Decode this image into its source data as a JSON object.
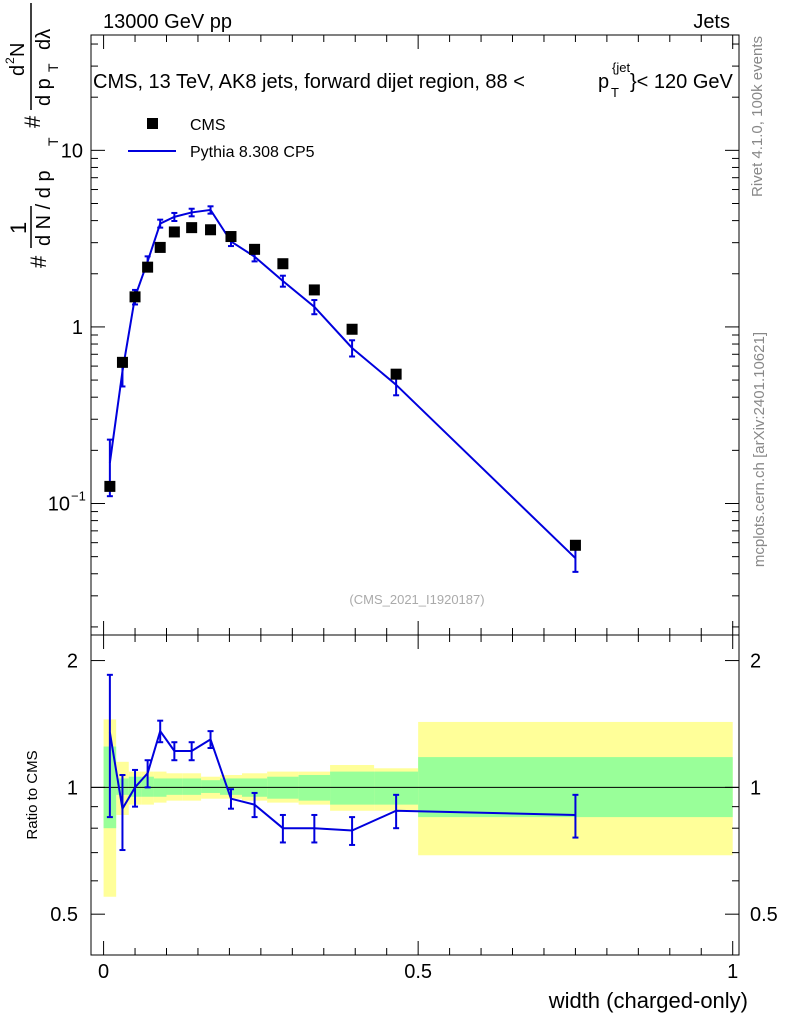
{
  "header": {
    "left": "13000 GeV pp",
    "right": "Jets"
  },
  "side_texts": {
    "rivet": "Rivet 4.1.0,  100k events",
    "mcplots": "mcplots.cern.ch [arXiv:2401.10621]"
  },
  "watermark": "(CMS_2021_I1920187)",
  "chart_data": {
    "type": "scatter",
    "title": "CMS, 13 TeV, AK8 jets, forward dijet region, 88 <",
    "title_pt": "p",
    "title_sub": "T",
    "title_sup": "{jet",
    "title_close": "}< 120 GeV",
    "xlabel": "width (charged-only)",
    "ylabel": {
      "hash1": "#",
      "one": "1",
      "dN": "d N / d p",
      "T": "T",
      "hash2": "#",
      "d2N": "d",
      "two": "2",
      "N": "N",
      "dpt": "d p",
      "dlambda": "dλ"
    },
    "xlim": [
      0,
      1
    ],
    "main_ylim": [
      0.018,
      45
    ],
    "main_yscale": "log",
    "main_yticks": [
      {
        "value": 10,
        "label": "10"
      },
      {
        "value": 1,
        "label": "1"
      },
      {
        "value": 0.1,
        "label": "10",
        "sup": "−1"
      }
    ],
    "ratio_ylabel": "Ratio to CMS",
    "ratio_ylim": [
      0.4,
      2.3
    ],
    "ratio_yscale": "log",
    "ratio_yticks": [
      {
        "value": 2,
        "label": "2"
      },
      {
        "value": 1,
        "label": "1"
      },
      {
        "value": 0.5,
        "label": "0.5"
      }
    ],
    "xticks": [
      {
        "value": 0,
        "label": "0"
      },
      {
        "value": 0.5,
        "label": "0.5"
      },
      {
        "value": 1,
        "label": "1"
      }
    ],
    "legend": [
      {
        "name": "CMS",
        "marker": "square",
        "color": "#000000"
      },
      {
        "name": "Pythia 8.308 CP5",
        "marker": "line",
        "color": "#0000dd"
      }
    ],
    "bins": [
      0,
      0.02,
      0.04,
      0.06,
      0.08,
      0.1,
      0.125,
      0.155,
      0.185,
      0.22,
      0.26,
      0.31,
      0.36,
      0.43,
      0.5,
      1.0
    ],
    "cms": {
      "name": "CMS",
      "x": [
        0.01,
        0.03,
        0.05,
        0.07,
        0.09,
        0.1125,
        0.14,
        0.17,
        0.2025,
        0.24,
        0.285,
        0.335,
        0.395,
        0.465,
        0.75
      ],
      "y": [
        0.125,
        0.63,
        1.48,
        2.18,
        2.82,
        3.45,
        3.65,
        3.55,
        3.25,
        2.75,
        2.28,
        1.62,
        0.97,
        0.54,
        0.058
      ],
      "stat_band_ratio": [
        [
          0.8,
          1.25
        ],
        [
          0.96,
          1.05
        ],
        [
          0.95,
          1.06
        ],
        [
          0.95,
          1.06
        ],
        [
          0.95,
          1.05
        ],
        [
          0.96,
          1.05
        ],
        [
          0.96,
          1.05
        ],
        [
          0.97,
          1.04
        ],
        [
          0.96,
          1.05
        ],
        [
          0.95,
          1.05
        ],
        [
          0.94,
          1.06
        ],
        [
          0.93,
          1.07
        ],
        [
          0.91,
          1.09
        ],
        [
          0.91,
          1.09
        ],
        [
          0.85,
          1.18
        ]
      ],
      "syst_band_ratio": [
        [
          0.55,
          1.45
        ],
        [
          0.86,
          1.15
        ],
        [
          0.91,
          1.09
        ],
        [
          0.91,
          1.09
        ],
        [
          0.92,
          1.09
        ],
        [
          0.93,
          1.08
        ],
        [
          0.93,
          1.08
        ],
        [
          0.94,
          1.06
        ],
        [
          0.94,
          1.07
        ],
        [
          0.93,
          1.08
        ],
        [
          0.92,
          1.09
        ],
        [
          0.91,
          1.09
        ],
        [
          0.88,
          1.13
        ],
        [
          0.88,
          1.11
        ],
        [
          0.69,
          1.43
        ]
      ]
    },
    "pythia": {
      "name": "Pythia 8.308 CP5",
      "x": [
        0.01,
        0.03,
        0.05,
        0.07,
        0.09,
        0.1125,
        0.14,
        0.17,
        0.2025,
        0.24,
        0.285,
        0.335,
        0.395,
        0.465,
        0.75
      ],
      "y": [
        0.17,
        0.56,
        1.48,
        2.35,
        3.85,
        4.2,
        4.45,
        4.6,
        3.05,
        2.5,
        1.82,
        1.3,
        0.76,
        0.47,
        0.049
      ],
      "err": [
        0.06,
        0.1,
        0.14,
        0.16,
        0.2,
        0.22,
        0.22,
        0.22,
        0.18,
        0.15,
        0.13,
        0.12,
        0.08,
        0.06,
        0.008
      ],
      "ratio": [
        1.35,
        0.89,
        1.0,
        1.08,
        1.36,
        1.22,
        1.22,
        1.3,
        0.94,
        0.91,
        0.8,
        0.8,
        0.79,
        0.88,
        0.86
      ],
      "ratio_err": [
        0.5,
        0.18,
        0.1,
        0.08,
        0.08,
        0.06,
        0.06,
        0.06,
        0.05,
        0.06,
        0.06,
        0.06,
        0.06,
        0.08,
        0.1
      ]
    }
  }
}
